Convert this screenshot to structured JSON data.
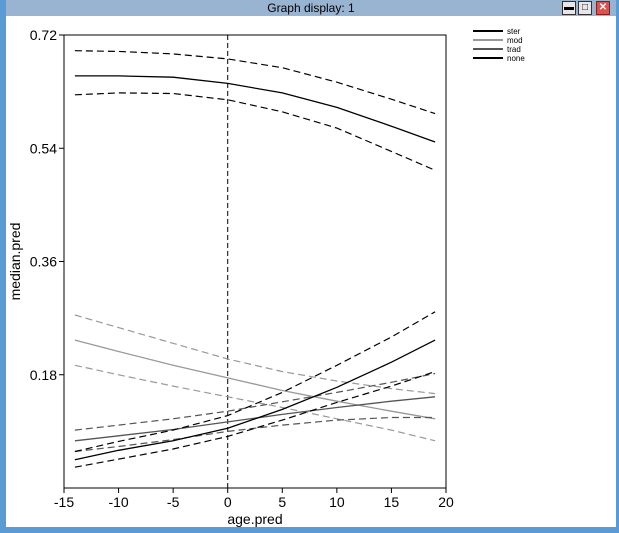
{
  "window": {
    "title": "Graph display: 1",
    "min_icon": "minimize-icon",
    "max_icon": "maximize-icon",
    "close_icon": "close-icon",
    "colors": {
      "border": "#5b9bd5",
      "titlebar": "#99b4d1",
      "close": "#d9534f"
    }
  },
  "chart_data": {
    "type": "line",
    "xlabel": "age.pred",
    "ylabel": "median.pred",
    "xlim": [
      -15,
      20
    ],
    "ylim": [
      0.0,
      0.72
    ],
    "x_ticks": [
      "-15",
      "-10",
      "-5",
      "0",
      "5",
      "10",
      "15",
      "20"
    ],
    "x_tick_values": [
      -15,
      -10,
      -5,
      0,
      5,
      10,
      15,
      20
    ],
    "y_ticks": [
      "0.18",
      "0.36",
      "0.54",
      "0.72"
    ],
    "y_tick_values": [
      0.18,
      0.36,
      0.54,
      0.72
    ],
    "vline_x": 0,
    "legend": {
      "placement": "top-right",
      "entries": [
        "ster",
        "mod",
        "trad",
        "none"
      ]
    },
    "series": [
      {
        "name": "ster",
        "color": "#000000",
        "x": [
          -14,
          -10,
          -5,
          0,
          5,
          10,
          15,
          19
        ],
        "median": [
          0.655,
          0.655,
          0.653,
          0.643,
          0.628,
          0.605,
          0.575,
          0.55
        ],
        "lower": [
          0.625,
          0.628,
          0.627,
          0.617,
          0.598,
          0.572,
          0.535,
          0.505
        ],
        "upper": [
          0.695,
          0.694,
          0.69,
          0.682,
          0.668,
          0.645,
          0.618,
          0.595
        ]
      },
      {
        "name": "mod",
        "color": "#999999",
        "x": [
          -14,
          -10,
          -5,
          0,
          5,
          10,
          15,
          19
        ],
        "median": [
          0.235,
          0.217,
          0.195,
          0.175,
          0.155,
          0.138,
          0.122,
          0.11
        ],
        "lower": [
          0.195,
          0.18,
          0.162,
          0.145,
          0.128,
          0.11,
          0.092,
          0.075
        ],
        "upper": [
          0.275,
          0.255,
          0.23,
          0.205,
          0.185,
          0.17,
          0.158,
          0.15
        ]
      },
      {
        "name": "trad",
        "color": "#555555",
        "x": [
          -14,
          -10,
          -5,
          0,
          5,
          10,
          15,
          19
        ],
        "median": [
          0.075,
          0.083,
          0.093,
          0.105,
          0.117,
          0.128,
          0.138,
          0.145
        ],
        "lower": [
          0.058,
          0.066,
          0.077,
          0.09,
          0.1,
          0.108,
          0.112,
          0.112
        ],
        "upper": [
          0.092,
          0.1,
          0.11,
          0.122,
          0.137,
          0.152,
          0.168,
          0.182
        ]
      },
      {
        "name": "none",
        "color": "#000000",
        "x": [
          -14,
          -10,
          -5,
          0,
          5,
          10,
          15,
          19
        ],
        "median": [
          0.045,
          0.06,
          0.075,
          0.095,
          0.125,
          0.16,
          0.2,
          0.235
        ],
        "lower": [
          0.033,
          0.046,
          0.062,
          0.082,
          0.108,
          0.136,
          0.162,
          0.185
        ],
        "upper": [
          0.058,
          0.074,
          0.092,
          0.115,
          0.152,
          0.195,
          0.24,
          0.28
        ]
      }
    ]
  }
}
